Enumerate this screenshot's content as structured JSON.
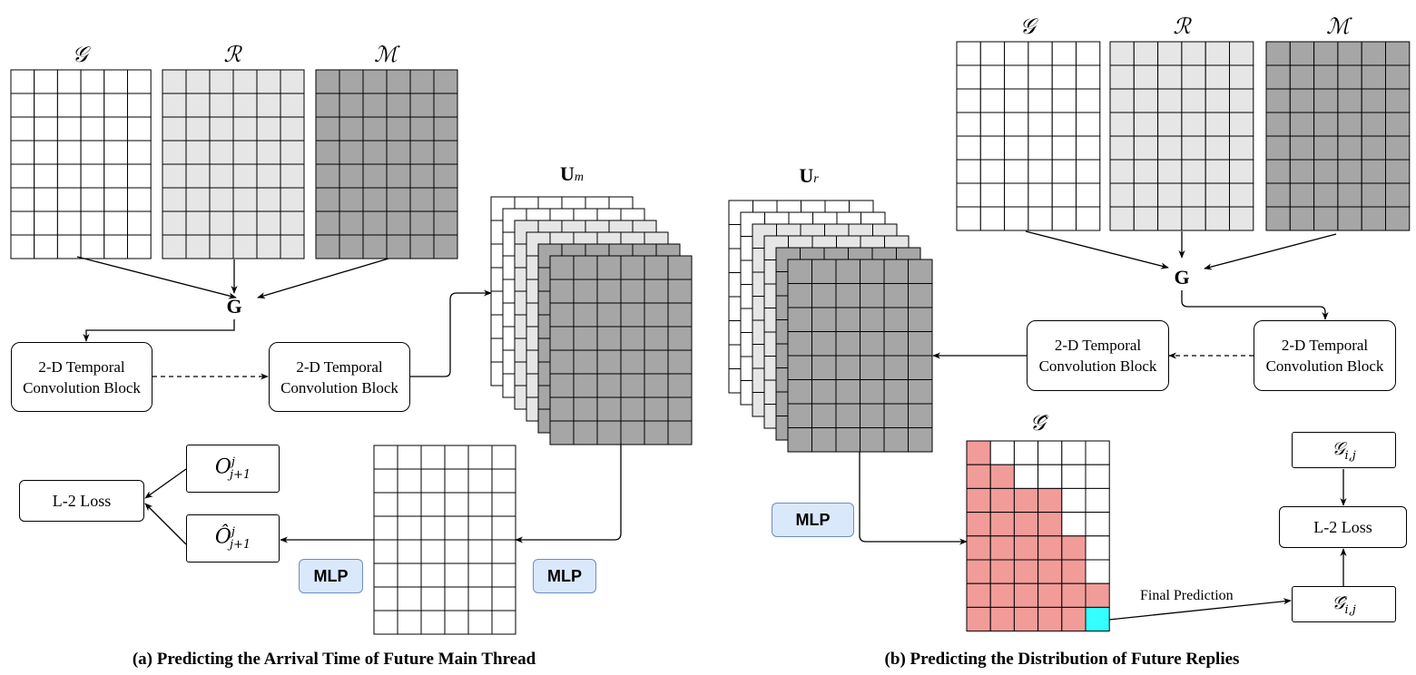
{
  "colors": {
    "white_cell": "#ffffff",
    "light_cell": "#e6e6e6",
    "dark_cell": "#a6a6a6",
    "pred_cell": "#f19c99",
    "highlight_cell": "#33ffff",
    "mlp_fill": "#dae8fc",
    "mlp_border": "#6c8ebf"
  },
  "panel_a": {
    "matrix_g": "𝒢",
    "matrix_r": "ℛ",
    "matrix_m": "ℳ",
    "node_g": "G",
    "conv_block_1": "2-D Temporal Convolution Block",
    "conv_block_2": "2-D Temporal Convolution Block",
    "u_main": "U",
    "u_main_sub": "m",
    "target": "O",
    "target_sup": "j",
    "target_sub": "j+1",
    "pred": "Ô",
    "pred_sup": "j",
    "pred_sub": "j+1",
    "loss": "L-2 Loss",
    "mlp_1": "MLP",
    "mlp_2": "MLP",
    "caption": "(a) Predicting the Arrival Time of Future Main Thread"
  },
  "panel_b": {
    "matrix_g": "𝒢",
    "matrix_r": "ℛ",
    "matrix_m": "ℳ",
    "node_g": "G",
    "conv_block_1": "2-D Temporal Convolution Block",
    "conv_block_2": "2-D Temporal Convolution Block",
    "u_reply": "U",
    "u_reply_sub": "r",
    "pred_matrix": "𝒢̂",
    "target": "𝒢",
    "target_sub": "i,j",
    "pred": "𝒢̂",
    "pred_sub": "i,j",
    "loss": "L-2 Loss",
    "mlp": "MLP",
    "edge_final": "Final Prediction",
    "caption": "(b) Predicting the Distribution of Future Replies"
  }
}
